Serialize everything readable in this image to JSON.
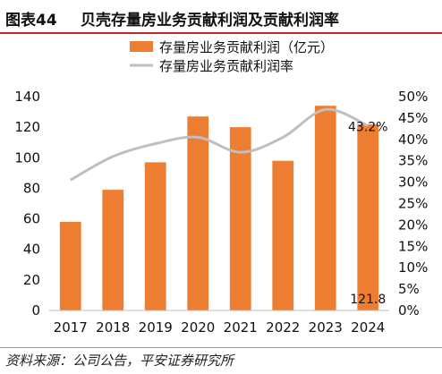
{
  "header": {
    "figure_label": "图表44",
    "title": "贝壳存量房业务贡献利润及贡献利润率"
  },
  "footer": {
    "source": "资料来源：公司公告，平安证券研究所"
  },
  "chart_data": {
    "type": "bar",
    "categories": [
      "2017",
      "2018",
      "2019",
      "2020",
      "2021",
      "2022",
      "2023",
      "2024"
    ],
    "series": [
      {
        "name": "存量房业务贡献利润（亿元）",
        "type": "bar",
        "axis": "left",
        "color": "#ed7d31",
        "values": [
          58,
          79,
          97,
          127,
          120,
          98,
          134,
          121.8
        ]
      },
      {
        "name": "存量房业务贡献利润率",
        "type": "line",
        "axis": "right",
        "color": "#bfbfbf",
        "values": [
          30.5,
          36.0,
          39.0,
          40.5,
          37.0,
          40.5,
          47.0,
          43.2
        ]
      }
    ],
    "data_labels": [
      {
        "series": 1,
        "index": 7,
        "text": "43.2%"
      },
      {
        "series": 0,
        "index": 7,
        "text": "121.8"
      }
    ],
    "y_left": {
      "ylim": [
        0,
        140
      ],
      "ticks": [
        "0",
        "20",
        "40",
        "60",
        "80",
        "100",
        "120",
        "140"
      ]
    },
    "y_right": {
      "ylim": [
        0,
        50
      ],
      "ticks": [
        "0%",
        "5%",
        "10%",
        "15%",
        "20%",
        "25%",
        "30%",
        "35%",
        "40%",
        "45%",
        "50%"
      ]
    },
    "legend_position": "top-center",
    "grid": false
  }
}
